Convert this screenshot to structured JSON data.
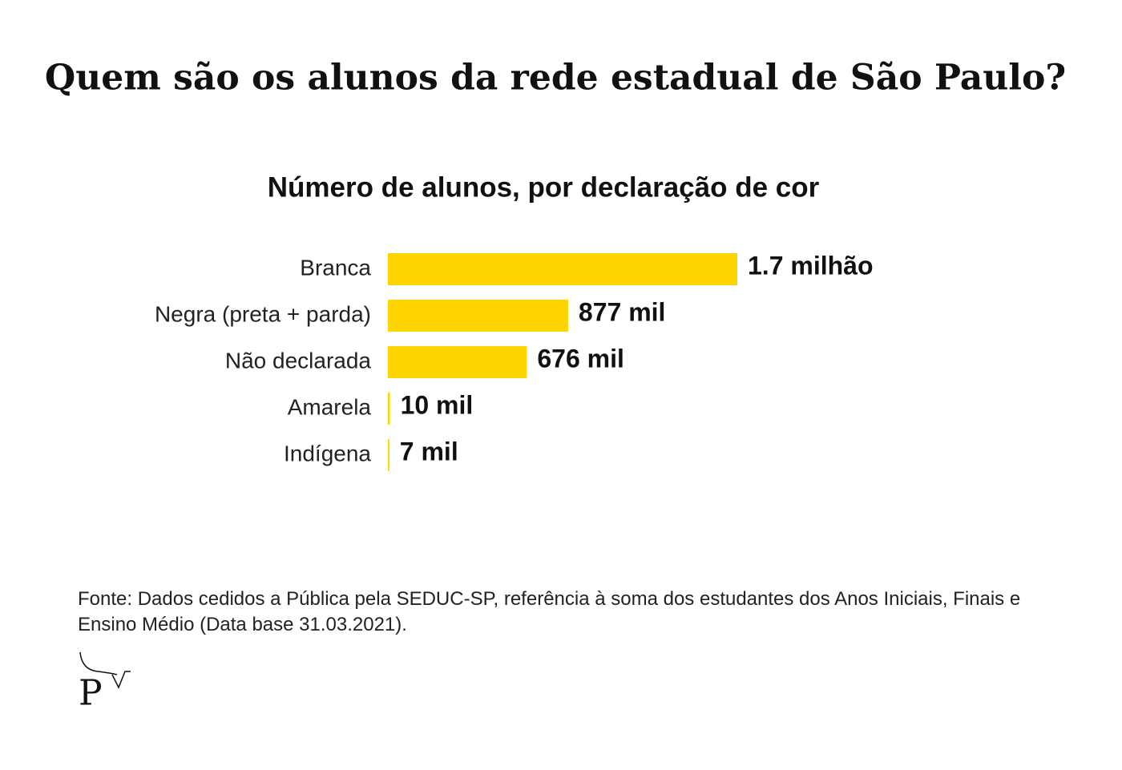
{
  "chart_data": {
    "type": "bar",
    "orientation": "horizontal",
    "title": "Quem são os alunos da rede estadual de São Paulo?",
    "subtitle": "Número de alunos, por declaração de cor",
    "categories": [
      "Branca",
      "Negra (preta + parda)",
      "Não declarada",
      "Amarela",
      "Indígena"
    ],
    "values": [
      1700000,
      877000,
      676000,
      10000,
      7000
    ],
    "value_labels": [
      "1.7 milhão",
      "877 mil",
      "676 mil",
      "10 mil",
      "7 mil"
    ],
    "color": "#ffd500",
    "source": "Fonte:  Dados cedidos a Pública pela SEDUC-SP, referência à soma dos estudantes dos Anos Iniciais, Finais e Ensino Médio (Data base 31.03.2021).",
    "logo": "P"
  }
}
